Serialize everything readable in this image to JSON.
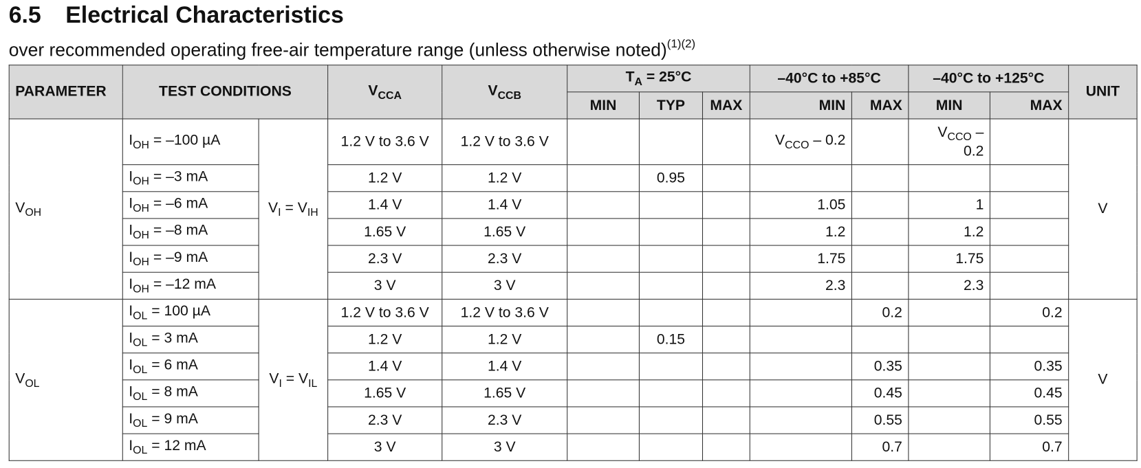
{
  "header": {
    "number": "6.5",
    "title": "Electrical Characteristics"
  },
  "subtitle": {
    "text": "over recommended operating free-air temperature range (unless otherwise noted)",
    "notes": [
      "(1)",
      "(2)"
    ]
  },
  "table": {
    "columns": {
      "parameter": "PARAMETER",
      "test_conditions": "TEST CONDITIONS",
      "vcca": {
        "main": "V",
        "sub": "CCA"
      },
      "vccb": {
        "main": "V",
        "sub": "CCB"
      },
      "ta": {
        "main": "T",
        "sub": "A",
        "rest": " = 25°C"
      },
      "range85": "–40°C to +85°C",
      "range125": "–40°C to +125°C",
      "unit": "UNIT"
    },
    "subcolumns": [
      "MIN",
      "TYP",
      "MAX",
      "MIN",
      "MAX",
      "MIN",
      "MAX"
    ],
    "sections": [
      {
        "parameter": {
          "main": "V",
          "sub": "OH"
        },
        "condition": {
          "main": "V",
          "sub": "I",
          "rest": " = V",
          "sub2": "IH"
        },
        "unit": "V",
        "rows": [
          [
            {
              "main": "I",
              "sub": "OH",
              "rest": " = –100 µA"
            },
            "1.2 V to 3.6 V",
            "1.2 V to 3.6 V",
            null,
            null,
            null,
            {
              "main": "V",
              "sub": "CCO",
              "rest": " – 0.2"
            },
            null,
            {
              "main": "V",
              "sub": "CCO",
              "rest": " – 0.2"
            },
            null
          ],
          [
            {
              "main": "I",
              "sub": "OH",
              "rest": " = –3 mA"
            },
            "1.2 V",
            "1.2 V",
            null,
            "0.95",
            null,
            null,
            null,
            null,
            null
          ],
          [
            {
              "main": "I",
              "sub": "OH",
              "rest": " = –6 mA"
            },
            "1.4 V",
            "1.4 V",
            null,
            null,
            null,
            "1.05",
            null,
            "1",
            null
          ],
          [
            {
              "main": "I",
              "sub": "OH",
              "rest": " = –8 mA"
            },
            "1.65 V",
            "1.65 V",
            null,
            null,
            null,
            "1.2",
            null,
            "1.2",
            null
          ],
          [
            {
              "main": "I",
              "sub": "OH",
              "rest": " = –9 mA"
            },
            "2.3 V",
            "2.3 V",
            null,
            null,
            null,
            "1.75",
            null,
            "1.75",
            null
          ],
          [
            {
              "main": "I",
              "sub": "OH",
              "rest": " = –12 mA"
            },
            "3 V",
            "3 V",
            null,
            null,
            null,
            "2.3",
            null,
            "2.3",
            null
          ]
        ]
      },
      {
        "parameter": {
          "main": "V",
          "sub": "OL"
        },
        "condition": {
          "main": "V",
          "sub": "I",
          "rest": " = V",
          "sub2": "IL"
        },
        "unit": "V",
        "rows": [
          [
            {
              "main": "I",
              "sub": "OL",
              "rest": " = 100 µA"
            },
            "1.2 V to 3.6 V",
            "1.2 V to 3.6 V",
            null,
            null,
            null,
            null,
            "0.2",
            null,
            "0.2"
          ],
          [
            {
              "main": "I",
              "sub": "OL",
              "rest": " = 3 mA"
            },
            "1.2 V",
            "1.2 V",
            null,
            "0.15",
            null,
            null,
            null,
            null,
            null
          ],
          [
            {
              "main": "I",
              "sub": "OL",
              "rest": " = 6 mA"
            },
            "1.4 V",
            "1.4 V",
            null,
            null,
            null,
            null,
            "0.35",
            null,
            "0.35"
          ],
          [
            {
              "main": "I",
              "sub": "OL",
              "rest": " = 8 mA"
            },
            "1.65 V",
            "1.65 V",
            null,
            null,
            null,
            null,
            "0.45",
            null,
            "0.45"
          ],
          [
            {
              "main": "I",
              "sub": "OL",
              "rest": " = 9 mA"
            },
            "2.3 V",
            "2.3 V",
            null,
            null,
            null,
            null,
            "0.55",
            null,
            "0.55"
          ],
          [
            {
              "main": "I",
              "sub": "OL",
              "rest": " = 12 mA"
            },
            "3 V",
            "3 V",
            null,
            null,
            null,
            null,
            "0.7",
            null,
            "0.7"
          ]
        ]
      }
    ]
  }
}
